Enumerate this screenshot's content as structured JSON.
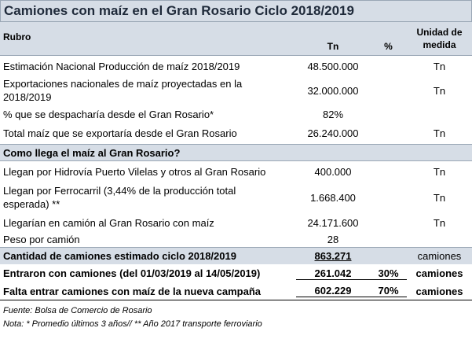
{
  "title": "Camiones con maíz en el Gran Rosario Ciclo 2018/2019",
  "header": {
    "rubro": "Rubro",
    "tn": "Tn",
    "pct": "%",
    "unidad_line1": "Unidad de",
    "unidad_line2": "medida"
  },
  "rows1": [
    {
      "label": "Estimación Nacional Producción de maíz 2018/2019",
      "tn": "48.500.000",
      "pct": "",
      "unit": "Tn"
    },
    {
      "label_l1": "Exportaciones nacionales de maíz proyectadas en la",
      "label_l2": "2018/2019",
      "tn": "32.000.000",
      "pct": "",
      "unit": "Tn"
    },
    {
      "label": "% que se despacharía desde el Gran Rosario*",
      "tn": "82%",
      "pct": "",
      "unit": ""
    },
    {
      "label": "Total maíz que se exportaría desde el Gran Rosario",
      "tn": "26.240.000",
      "pct": "",
      "unit": "Tn"
    }
  ],
  "section2": "Como llega el maíz al Gran Rosario?",
  "rows2": [
    {
      "label": "Llegan por Hidrovía Puerto Vilelas y otros al Gran Rosario",
      "tn": "400.000",
      "unit": "Tn"
    },
    {
      "label_l1": "Llegan por Ferrocarril (3,44% de la producción total",
      "label_l2": "esperada) **",
      "tn": "1.668.400",
      "unit": "Tn"
    },
    {
      "label": "Llegarían en camión al Gran Rosario con maíz",
      "tn": "24.171.600",
      "unit": "Tn"
    },
    {
      "label": "Peso por camión",
      "tn": "28",
      "unit": ""
    }
  ],
  "summary": {
    "label": "Cantidad de camiones estimado ciclo 2018/2019",
    "tn": "863.271",
    "unit": "camiones"
  },
  "bold_rows": [
    {
      "label": "Entraron con camiones (del 01/03/2019 al 14/05/2019)",
      "tn": "261.042",
      "pct": "30%",
      "unit": "camiones"
    },
    {
      "label": "Falta entrar camiones con maíz de la nueva campaña",
      "tn": "602.229",
      "pct": "70%",
      "unit": "camiones"
    }
  ],
  "notes": {
    "source": "Fuente: Bolsa de Comercio de Rosario",
    "note": "Nota: * Promedio últimos 3 años// ** Año 2017 transporte ferroviario"
  }
}
